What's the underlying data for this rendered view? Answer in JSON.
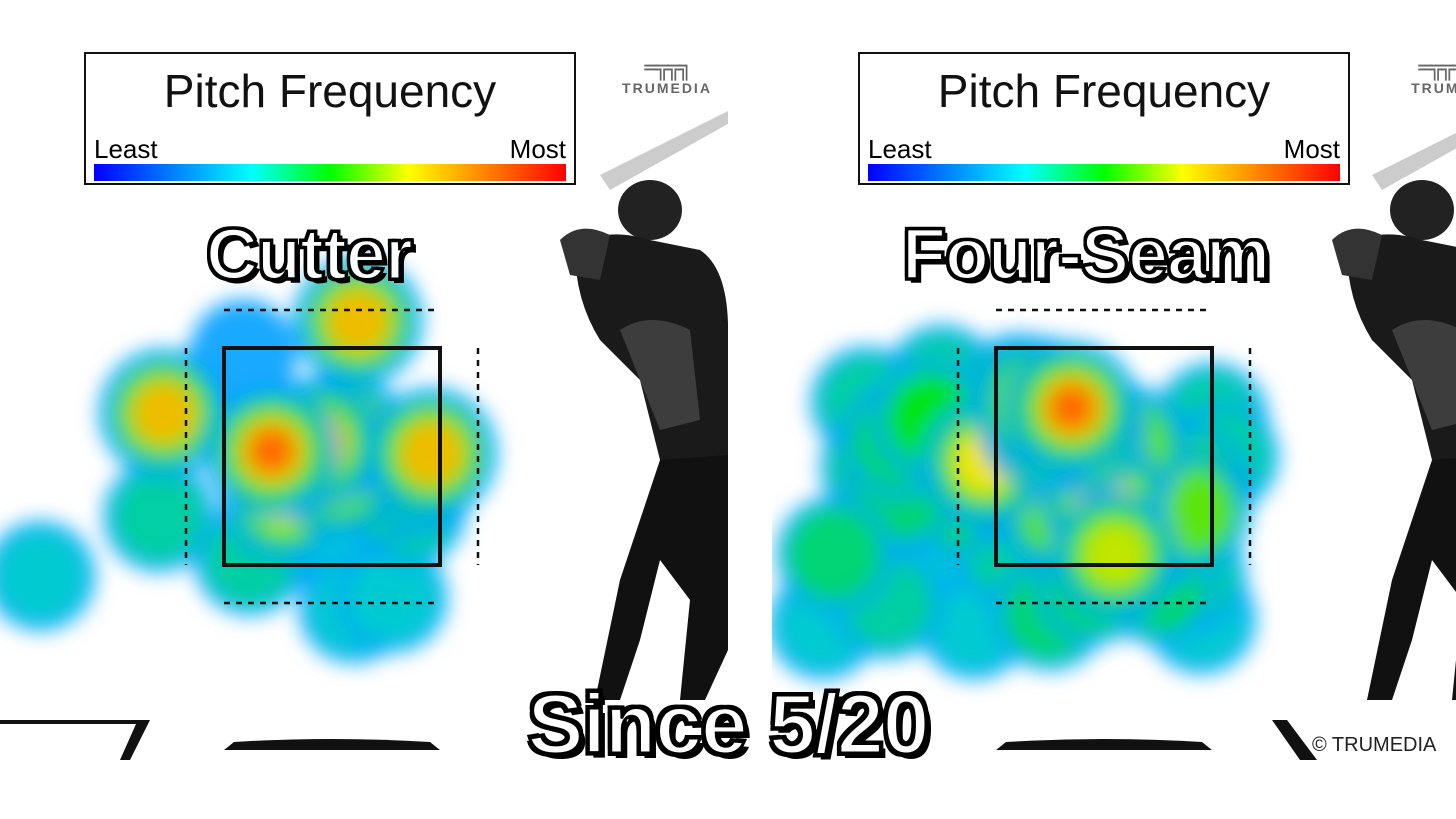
{
  "legend": {
    "title": "Pitch Frequency",
    "least_label": "Least",
    "most_label": "Most",
    "colors": [
      "#0000ff",
      "#00ffff",
      "#00ff00",
      "#ffff00",
      "#ff0000"
    ]
  },
  "brand": {
    "logo_text": "TRUMEDIA",
    "logo_text_cropped": "TRUME",
    "copyright": "© TRUMEDIA"
  },
  "caption": "Since 5/20",
  "chart_data": [
    {
      "type": "heatmap",
      "title": "Cutter",
      "legend_title": "Pitch Frequency",
      "scale": [
        "Least",
        "Most"
      ],
      "hotspots": [
        {
          "x": 0.09,
          "y": 0.05,
          "intensity": 0.25
        },
        {
          "x": 0.62,
          "y": -0.25,
          "intensity": 0.8
        },
        {
          "x": 0.55,
          "y": 0.8,
          "intensity": 0.75
        },
        {
          "x": 0.22,
          "y": 0.95,
          "intensity": 0.9
        },
        {
          "x": 0.42,
          "y": 0.88,
          "intensity": 0.85
        },
        {
          "x": 0.28,
          "y": 1.38,
          "intensity": 0.7
        },
        {
          "x": 0.52,
          "y": 1.15,
          "intensity": 0.7
        },
        {
          "x": 0.9,
          "y": 1.15,
          "intensity": 0.55
        },
        {
          "x": 0.72,
          "y": 1.3,
          "intensity": 0.4
        },
        {
          "x": 0.83,
          "y": 1.45,
          "intensity": 0.35
        },
        {
          "x": 0.96,
          "y": 0.97,
          "intensity": 0.85
        },
        {
          "x": 0.86,
          "y": 1.5,
          "intensity": 0.35
        },
        {
          "x": 0.3,
          "y": 1.7,
          "intensity": 0.3
        },
        {
          "x": -0.28,
          "y": 0.6,
          "intensity": 0.8
        },
        {
          "x": -0.3,
          "y": 1.55,
          "intensity": 0.35
        },
        {
          "x": 0.58,
          "y": 1.8,
          "intensity": 0.3
        },
        {
          "x": 0.12,
          "y": 1.95,
          "intensity": 0.35
        },
        {
          "x": -0.85,
          "y": 2.1,
          "intensity": 0.3
        },
        {
          "x": 0.6,
          "y": 2.4,
          "intensity": 0.3
        },
        {
          "x": 0.78,
          "y": 2.3,
          "intensity": 0.3
        }
      ]
    },
    {
      "type": "heatmap",
      "title": "Four-Seam",
      "legend_title": "Pitch Frequency",
      "scale": [
        "Least",
        "Most"
      ],
      "hotspots": [
        {
          "x": 0.35,
          "y": 0.55,
          "intensity": 0.9
        },
        {
          "x": 0.2,
          "y": 0.5,
          "intensity": 0.85
        },
        {
          "x": 0.4,
          "y": 0.78,
          "intensity": 0.75
        },
        {
          "x": 0.22,
          "y": 0.72,
          "intensity": 0.8
        },
        {
          "x": -0.05,
          "y": 1.05,
          "intensity": 0.75
        },
        {
          "x": 0.58,
          "y": 1.15,
          "intensity": 0.6
        },
        {
          "x": 0.75,
          "y": 1.3,
          "intensity": 0.55
        },
        {
          "x": 0.85,
          "y": 1.45,
          "intensity": 0.5
        },
        {
          "x": 0.5,
          "y": 1.4,
          "intensity": 0.7
        },
        {
          "x": 0.3,
          "y": 1.5,
          "intensity": 0.6
        },
        {
          "x": 0.7,
          "y": 1.7,
          "intensity": 0.55
        },
        {
          "x": 0.55,
          "y": 1.9,
          "intensity": 0.7
        },
        {
          "x": 0.9,
          "y": 1.5,
          "intensity": 0.6
        },
        {
          "x": 0.6,
          "y": 0.9,
          "intensity": 0.65
        },
        {
          "x": 0.35,
          "y": 1.05,
          "intensity": 0.55
        },
        {
          "x": 0.1,
          "y": 0.4,
          "intensity": 0.45
        },
        {
          "x": -0.3,
          "y": 0.65,
          "intensity": 0.5
        },
        {
          "x": -0.25,
          "y": 0.3,
          "intensity": 0.35
        },
        {
          "x": -0.55,
          "y": 1.1,
          "intensity": 0.4
        },
        {
          "x": -0.45,
          "y": 0.85,
          "intensity": 0.45
        },
        {
          "x": -0.2,
          "y": 1.4,
          "intensity": 0.4
        },
        {
          "x": 0.05,
          "y": 1.25,
          "intensity": 0.4
        },
        {
          "x": 0.18,
          "y": 0.95,
          "intensity": 0.5
        },
        {
          "x": 0.28,
          "y": 0.7,
          "intensity": 0.6
        },
        {
          "x": 0.9,
          "y": 1.25,
          "intensity": 0.55
        },
        {
          "x": 0.75,
          "y": 2.2,
          "intensity": 0.45
        },
        {
          "x": 0.45,
          "y": 2.2,
          "intensity": 0.45
        },
        {
          "x": 0.25,
          "y": 2.45,
          "intensity": 0.4
        },
        {
          "x": -0.75,
          "y": 1.9,
          "intensity": 0.45
        },
        {
          "x": -0.5,
          "y": 2.35,
          "intensity": 0.35
        },
        {
          "x": -0.45,
          "y": 1.35,
          "intensity": 0.4
        },
        {
          "x": -0.6,
          "y": 0.5,
          "intensity": 0.35
        },
        {
          "x": -0.3,
          "y": 2.0,
          "intensity": 0.3
        },
        {
          "x": 0.9,
          "y": 2.1,
          "intensity": 0.35
        },
        {
          "x": 0.05,
          "y": 1.85,
          "intensity": 0.35
        },
        {
          "x": -0.1,
          "y": 2.55,
          "intensity": 0.3
        },
        {
          "x": -0.8,
          "y": 2.55,
          "intensity": 0.3
        },
        {
          "x": -0.3,
          "y": 1.75,
          "intensity": 0.3
        },
        {
          "x": 1.0,
          "y": 0.65,
          "intensity": 0.35
        },
        {
          "x": 1.05,
          "y": 1.0,
          "intensity": 0.35
        },
        {
          "x": 0.95,
          "y": 2.5,
          "intensity": 0.3
        }
      ]
    }
  ]
}
